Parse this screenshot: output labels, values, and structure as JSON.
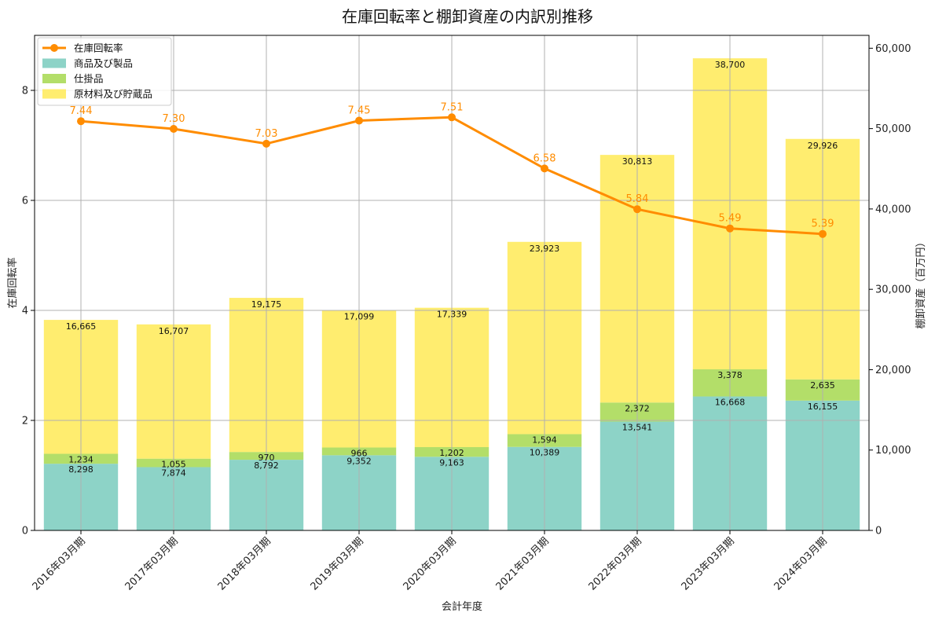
{
  "chart_data": {
    "type": "bar",
    "title": "在庫回転率と棚卸資産の内訳別推移",
    "xlabel": "会計年度",
    "ylabel_left": "在庫回転率",
    "ylabel_right": "棚卸資産（百万円）",
    "categories": [
      "2016年03月期",
      "2017年03月期",
      "2018年03月期",
      "2019年03月期",
      "2020年03月期",
      "2021年03月期",
      "2022年03月期",
      "2023年03月期",
      "2024年03月期"
    ],
    "series": [
      {
        "name": "商品及び製品",
        "kind": "bar",
        "axis": "right",
        "color": "#8dd3c7",
        "values": [
          8298,
          7874,
          8792,
          9352,
          9163,
          10389,
          13541,
          16668,
          16155
        ],
        "labels": [
          "8,298",
          "7,874",
          "8,792",
          "9,352",
          "9,163",
          "10,389",
          "13,541",
          "16,668",
          "16,155"
        ]
      },
      {
        "name": "仕掛品",
        "kind": "bar",
        "axis": "right",
        "color": "#b3de69",
        "values": [
          1234,
          1055,
          970,
          966,
          1202,
          1594,
          2372,
          3378,
          2635
        ],
        "labels": [
          "1,234",
          "1,055",
          "970",
          "966",
          "1,202",
          "1,594",
          "2,372",
          "3,378",
          "2,635"
        ]
      },
      {
        "name": "原材料及び貯蔵品",
        "kind": "bar",
        "axis": "right",
        "color": "#ffed6f",
        "values": [
          16665,
          16707,
          19175,
          17099,
          17339,
          23923,
          30813,
          38700,
          29926
        ],
        "labels": [
          "16,665",
          "16,707",
          "19,175",
          "17,099",
          "17,339",
          "23,923",
          "30,813",
          "38,700",
          "29,926"
        ]
      },
      {
        "name": "在庫回転率",
        "kind": "line",
        "axis": "left",
        "color": "#ff8c00",
        "values": [
          7.44,
          7.3,
          7.03,
          7.45,
          7.51,
          6.58,
          5.84,
          5.49,
          5.39
        ],
        "labels": [
          "7.44",
          "7.30",
          "7.03",
          "7.45",
          "7.51",
          "6.58",
          "5.84",
          "5.49",
          "5.39"
        ]
      }
    ],
    "ylim_left": [
      0,
      9
    ],
    "ylim_right": [
      0,
      61600
    ],
    "left_ticks": [
      {
        "value": 0,
        "label": "0"
      },
      {
        "value": 2,
        "label": "2"
      },
      {
        "value": 4,
        "label": "4"
      },
      {
        "value": 6,
        "label": "6"
      },
      {
        "value": 8,
        "label": "8"
      }
    ],
    "right_ticks": [
      {
        "value": 0,
        "label": "0"
      },
      {
        "value": 10000,
        "label": "10,000"
      },
      {
        "value": 20000,
        "label": "20,000"
      },
      {
        "value": 30000,
        "label": "30,000"
      },
      {
        "value": 40000,
        "label": "40,000"
      },
      {
        "value": 50000,
        "label": "50,000"
      },
      {
        "value": 60000,
        "label": "60,000"
      }
    ],
    "grid": true,
    "legend_position": "top-left"
  }
}
